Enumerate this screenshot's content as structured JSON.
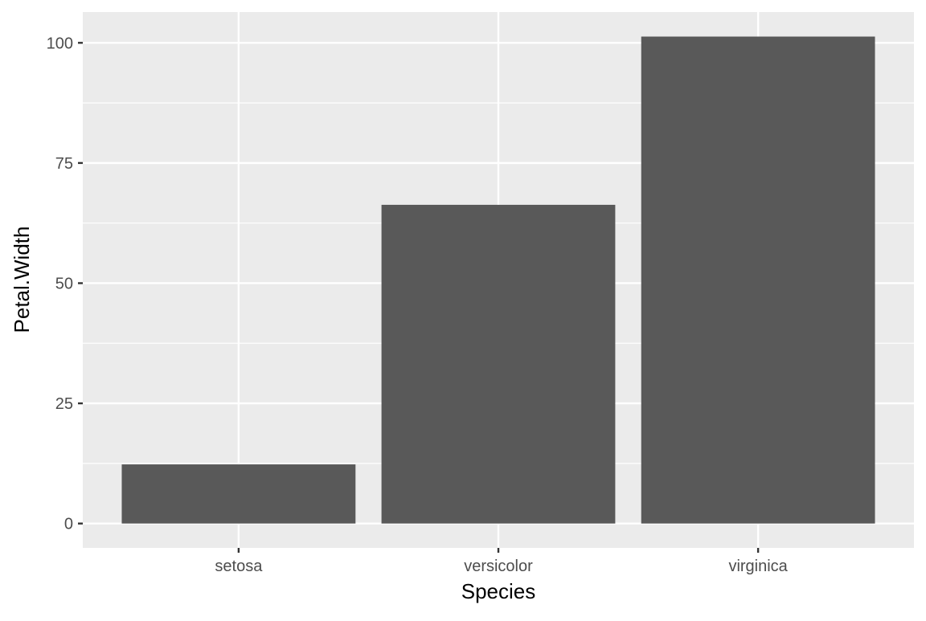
{
  "chart_data": {
    "type": "bar",
    "title": "",
    "xlabel": "Species",
    "ylabel": "Petal.Width",
    "categories": [
      "setosa",
      "versicolor",
      "virginica"
    ],
    "values": [
      12.3,
      66.3,
      101.3
    ],
    "ylim": [
      -5.07,
      106.4
    ],
    "yticks": [
      0,
      25,
      50,
      75,
      100
    ],
    "ytick_labels": [
      "0",
      "25",
      "50",
      "75",
      "100"
    ],
    "grid": true,
    "legend": "none",
    "colors": {
      "bar": "#595959",
      "panel": "#ebebeb",
      "grid": "#ffffff",
      "text": "#4d4d4d",
      "axis_title": "#000000"
    }
  }
}
